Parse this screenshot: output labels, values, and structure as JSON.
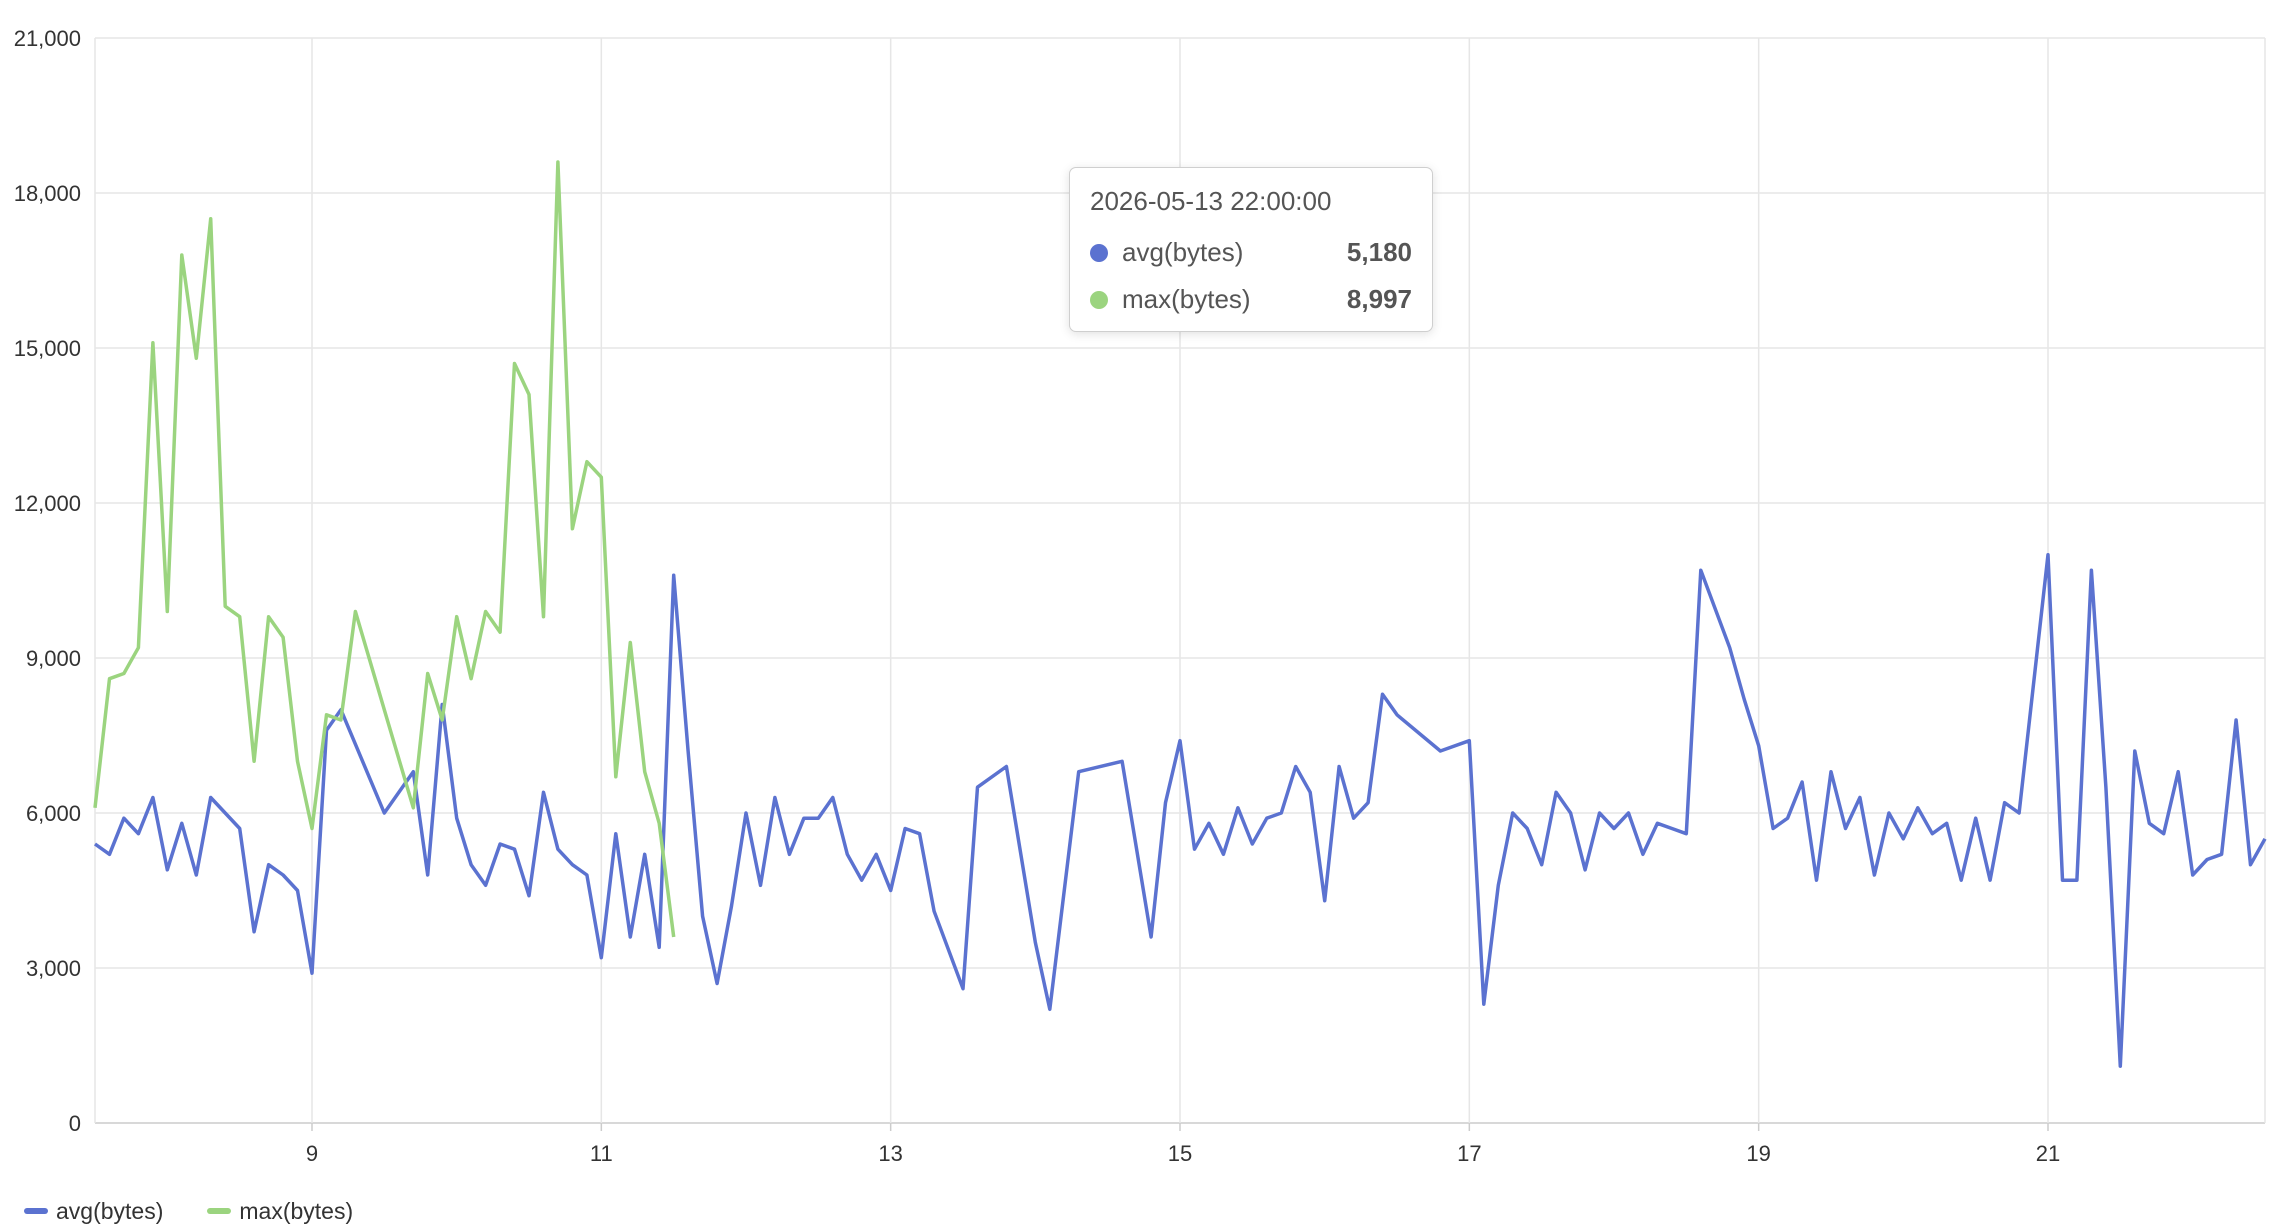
{
  "chart_data": {
    "type": "line",
    "ylim": [
      0,
      21000
    ],
    "yticks": [
      "0",
      "3,000",
      "6,000",
      "9,000",
      "12,000",
      "15,000",
      "18,000",
      "21,000"
    ],
    "xlim": [
      7.5,
      22.5
    ],
    "xticks": [
      {
        "value": 9,
        "label": "9"
      },
      {
        "value": 11,
        "label": "11"
      },
      {
        "value": 13,
        "label": "13"
      },
      {
        "value": 15,
        "label": "15"
      },
      {
        "value": 17,
        "label": "17"
      },
      {
        "value": 19,
        "label": "19"
      },
      {
        "value": 21,
        "label": "21"
      }
    ],
    "grid": true,
    "legend_position": "bottom-left",
    "series": [
      {
        "name": "avg(bytes)",
        "color": "#5b72d0",
        "points": [
          [
            7.5,
            5400
          ],
          [
            7.6,
            5200
          ],
          [
            7.7,
            5900
          ],
          [
            7.8,
            5600
          ],
          [
            7.9,
            6300
          ],
          [
            8.0,
            4900
          ],
          [
            8.1,
            5800
          ],
          [
            8.2,
            4800
          ],
          [
            8.3,
            6300
          ],
          [
            8.4,
            6000
          ],
          [
            8.5,
            5700
          ],
          [
            8.6,
            3700
          ],
          [
            8.7,
            5000
          ],
          [
            8.8,
            4800
          ],
          [
            8.9,
            4500
          ],
          [
            9.0,
            2900
          ],
          [
            9.1,
            7600
          ],
          [
            9.2,
            8000
          ],
          [
            9.5,
            6000
          ],
          [
            9.7,
            6800
          ],
          [
            9.8,
            4800
          ],
          [
            9.9,
            8100
          ],
          [
            10.0,
            5900
          ],
          [
            10.1,
            5000
          ],
          [
            10.2,
            4600
          ],
          [
            10.3,
            5400
          ],
          [
            10.4,
            5300
          ],
          [
            10.5,
            4400
          ],
          [
            10.6,
            6400
          ],
          [
            10.7,
            5300
          ],
          [
            10.8,
            5000
          ],
          [
            10.9,
            4800
          ],
          [
            11.0,
            3200
          ],
          [
            11.1,
            5600
          ],
          [
            11.2,
            3600
          ],
          [
            11.3,
            5200
          ],
          [
            11.4,
            3400
          ],
          [
            11.5,
            10600
          ],
          [
            11.6,
            7200
          ],
          [
            11.7,
            4000
          ],
          [
            11.8,
            2700
          ],
          [
            11.9,
            4200
          ],
          [
            12.0,
            6000
          ],
          [
            12.1,
            4600
          ],
          [
            12.2,
            6300
          ],
          [
            12.3,
            5200
          ],
          [
            12.4,
            5900
          ],
          [
            12.5,
            5900
          ],
          [
            12.6,
            6300
          ],
          [
            12.7,
            5200
          ],
          [
            12.8,
            4700
          ],
          [
            12.9,
            5200
          ],
          [
            13.0,
            4500
          ],
          [
            13.1,
            5700
          ],
          [
            13.2,
            5600
          ],
          [
            13.3,
            4100
          ],
          [
            13.5,
            2600
          ],
          [
            13.6,
            6500
          ],
          [
            13.8,
            6900
          ],
          [
            14.0,
            3500
          ],
          [
            14.1,
            2200
          ],
          [
            14.3,
            6800
          ],
          [
            14.6,
            7000
          ],
          [
            14.8,
            3600
          ],
          [
            14.9,
            6200
          ],
          [
            15.0,
            7400
          ],
          [
            15.1,
            5300
          ],
          [
            15.2,
            5800
          ],
          [
            15.3,
            5200
          ],
          [
            15.4,
            6100
          ],
          [
            15.5,
            5400
          ],
          [
            15.6,
            5900
          ],
          [
            15.7,
            6000
          ],
          [
            15.8,
            6900
          ],
          [
            15.9,
            6400
          ],
          [
            16.0,
            4300
          ],
          [
            16.1,
            6900
          ],
          [
            16.2,
            5900
          ],
          [
            16.3,
            6200
          ],
          [
            16.4,
            8300
          ],
          [
            16.5,
            7900
          ],
          [
            16.8,
            7200
          ],
          [
            17.0,
            7400
          ],
          [
            17.1,
            2300
          ],
          [
            17.2,
            4600
          ],
          [
            17.3,
            6000
          ],
          [
            17.4,
            5700
          ],
          [
            17.5,
            5000
          ],
          [
            17.6,
            6400
          ],
          [
            17.7,
            6000
          ],
          [
            17.8,
            4900
          ],
          [
            17.9,
            6000
          ],
          [
            18.0,
            5700
          ],
          [
            18.1,
            6000
          ],
          [
            18.2,
            5200
          ],
          [
            18.3,
            5800
          ],
          [
            18.4,
            5700
          ],
          [
            18.5,
            5600
          ],
          [
            18.6,
            10700
          ],
          [
            18.8,
            9200
          ],
          [
            18.9,
            8200
          ],
          [
            19.0,
            7300
          ],
          [
            19.1,
            5700
          ],
          [
            19.2,
            5900
          ],
          [
            19.3,
            6600
          ],
          [
            19.4,
            4700
          ],
          [
            19.5,
            6800
          ],
          [
            19.6,
            5700
          ],
          [
            19.7,
            6300
          ],
          [
            19.8,
            4800
          ],
          [
            19.9,
            6000
          ],
          [
            20.0,
            5500
          ],
          [
            20.1,
            6100
          ],
          [
            20.2,
            5600
          ],
          [
            20.3,
            5800
          ],
          [
            20.4,
            4700
          ],
          [
            20.5,
            5900
          ],
          [
            20.6,
            4700
          ],
          [
            20.7,
            6200
          ],
          [
            20.8,
            6000
          ],
          [
            21.0,
            11000
          ],
          [
            21.1,
            4700
          ],
          [
            21.2,
            4700
          ],
          [
            21.3,
            10700
          ],
          [
            21.4,
            6500
          ],
          [
            21.5,
            1100
          ],
          [
            21.6,
            7200
          ],
          [
            21.7,
            5800
          ],
          [
            21.8,
            5600
          ],
          [
            21.9,
            6800
          ],
          [
            22.0,
            4800
          ],
          [
            22.1,
            5100
          ],
          [
            22.2,
            5200
          ],
          [
            22.3,
            7800
          ],
          [
            22.4,
            5000
          ],
          [
            22.5,
            5500
          ]
        ]
      },
      {
        "name": "max(bytes)",
        "color": "#9bd47f",
        "points": [
          [
            7.5,
            6100
          ],
          [
            7.6,
            8600
          ],
          [
            7.7,
            8700
          ],
          [
            7.8,
            9200
          ],
          [
            7.9,
            15100
          ],
          [
            8.0,
            9900
          ],
          [
            8.1,
            16800
          ],
          [
            8.2,
            14800
          ],
          [
            8.3,
            17500
          ],
          [
            8.4,
            10000
          ],
          [
            8.5,
            9800
          ],
          [
            8.6,
            7000
          ],
          [
            8.7,
            9800
          ],
          [
            8.8,
            9400
          ],
          [
            8.9,
            7000
          ],
          [
            9.0,
            5700
          ],
          [
            9.1,
            7900
          ],
          [
            9.2,
            7800
          ],
          [
            9.3,
            9900
          ],
          [
            9.5,
            8000
          ],
          [
            9.7,
            6100
          ],
          [
            9.8,
            8700
          ],
          [
            9.9,
            7800
          ],
          [
            10.0,
            9800
          ],
          [
            10.1,
            8600
          ],
          [
            10.2,
            9900
          ],
          [
            10.3,
            9500
          ],
          [
            10.4,
            14700
          ],
          [
            10.5,
            14100
          ],
          [
            10.6,
            9800
          ],
          [
            10.7,
            18600
          ],
          [
            10.8,
            11500
          ],
          [
            10.9,
            12800
          ],
          [
            11.0,
            12500
          ],
          [
            11.1,
            6700
          ],
          [
            11.2,
            9300
          ],
          [
            11.3,
            6800
          ],
          [
            11.4,
            5800
          ],
          [
            11.5,
            3600
          ]
        ]
      }
    ]
  },
  "tooltip": {
    "title": "2026-05-13 22:00:00",
    "rows": [
      {
        "name": "avg(bytes)",
        "value": "5,180",
        "color": "#5b72d0"
      },
      {
        "name": "max(bytes)",
        "value": "8,997",
        "color": "#9bd47f"
      }
    ]
  },
  "legend": [
    {
      "name": "avg(bytes)",
      "color": "#5b72d0"
    },
    {
      "name": "max(bytes)",
      "color": "#9bd47f"
    }
  ]
}
